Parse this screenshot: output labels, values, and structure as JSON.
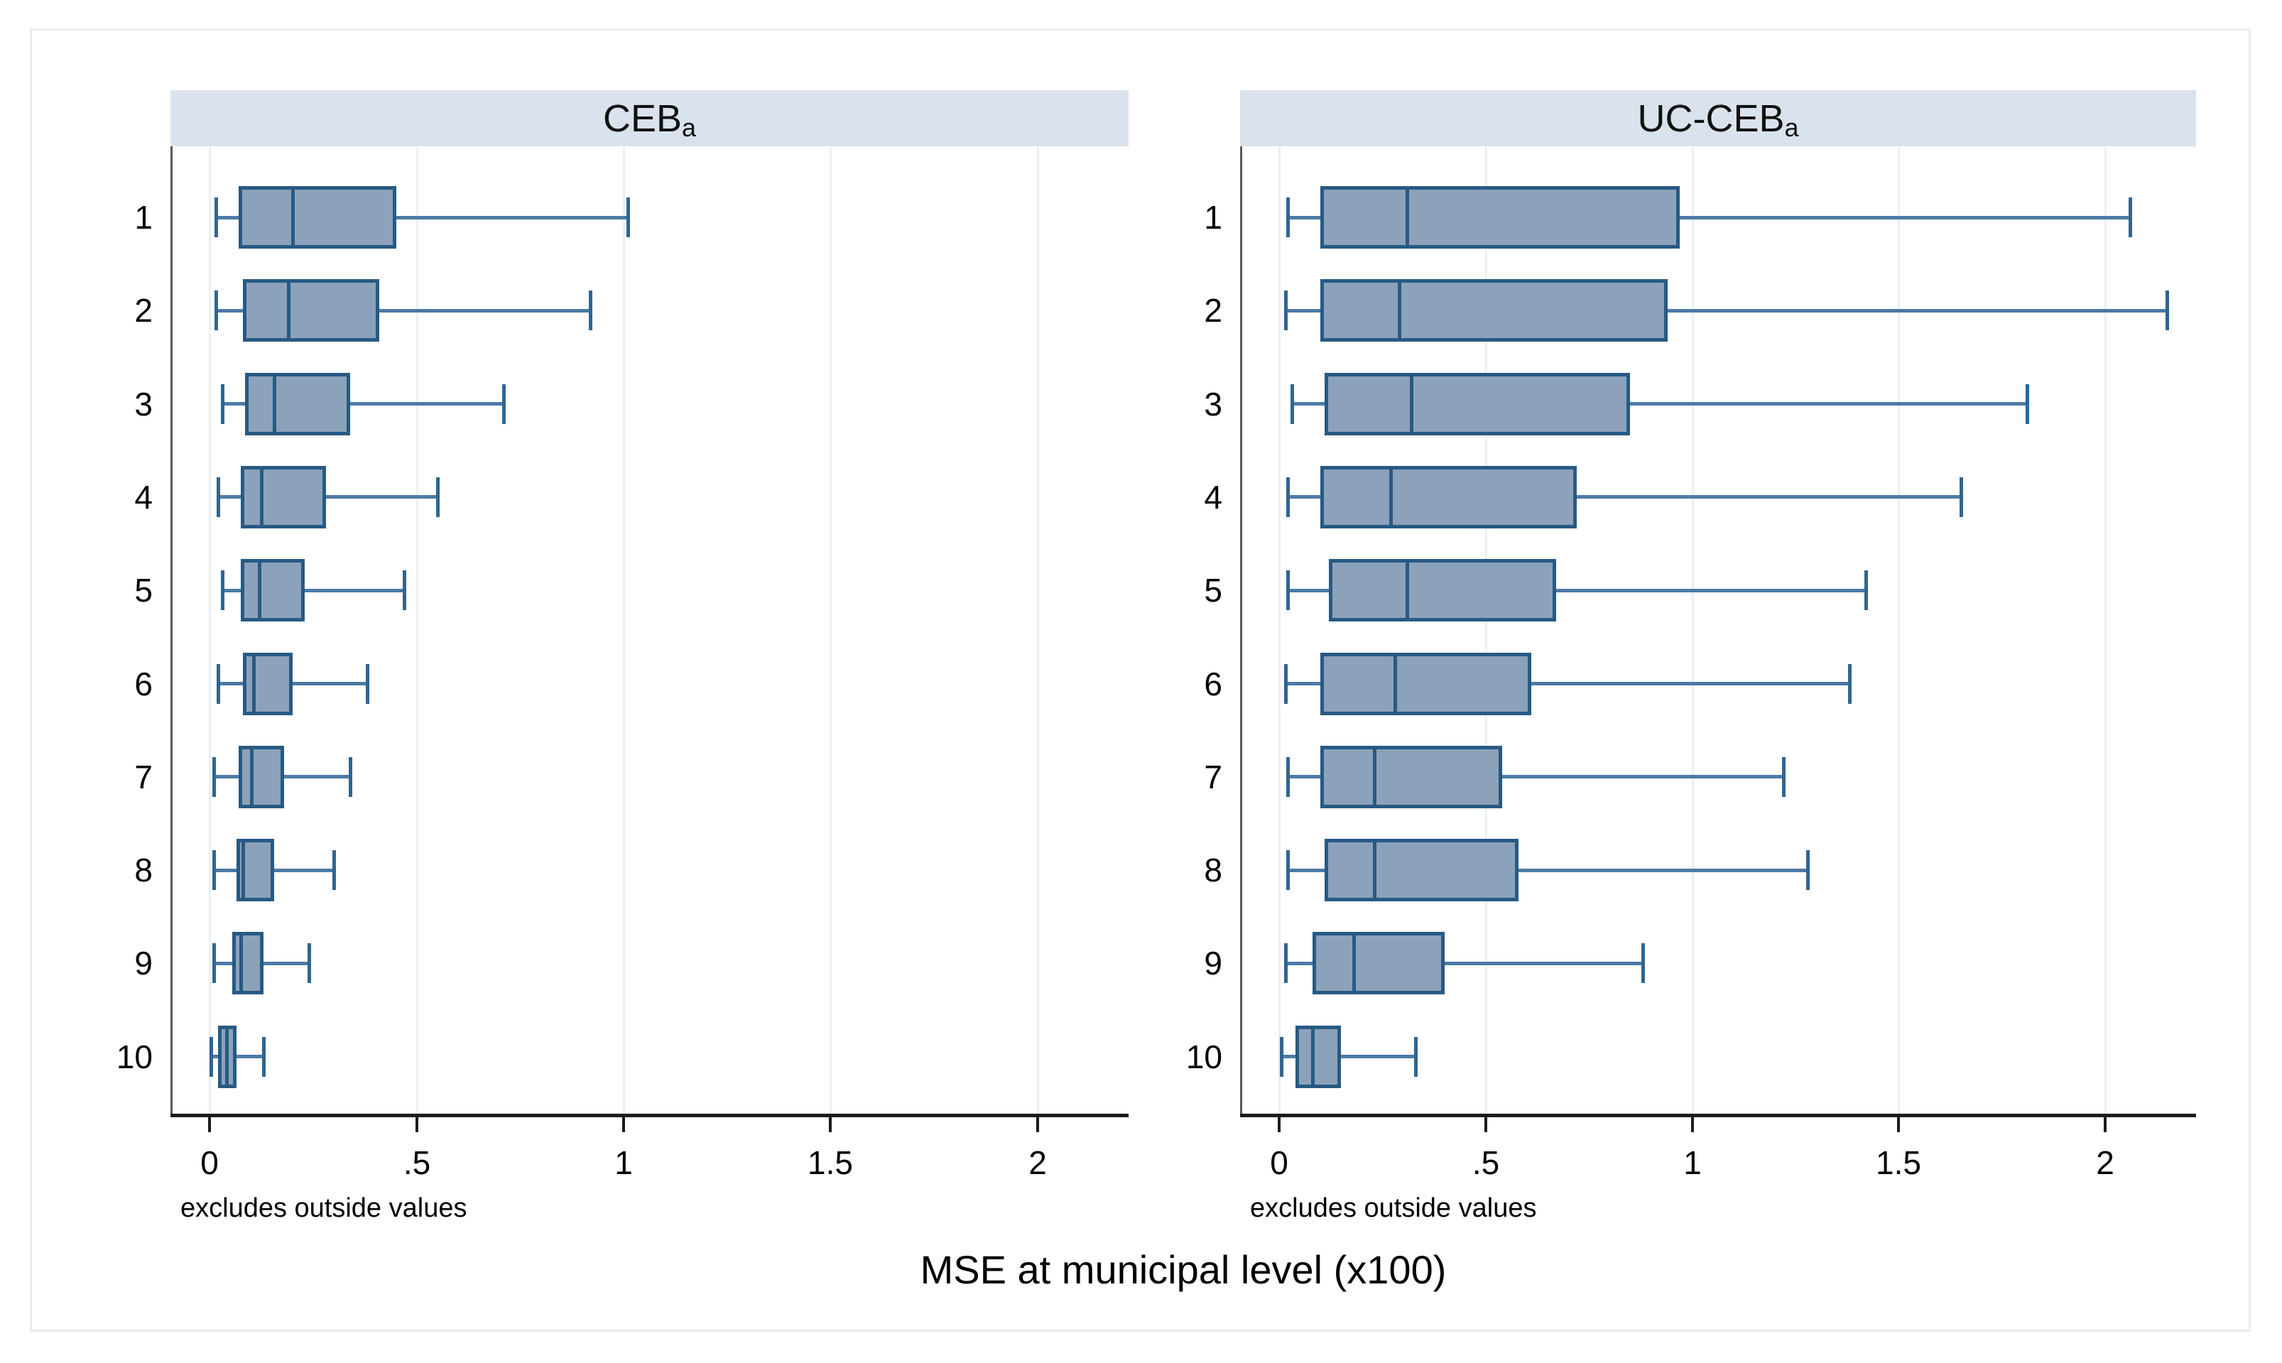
{
  "figure": {
    "xlabel": "MSE at municipal level (x100)",
    "note": "excludes outside values",
    "x_tick_labels": [
      "0",
      ".5",
      "1",
      "1.5",
      "2"
    ],
    "x_tick_values": [
      0,
      0.5,
      1,
      1.5,
      2
    ],
    "colors": {
      "band_background": "#dae3ed",
      "box_fill": "#8ca2ba",
      "box_border": "#275a84",
      "median_line": "#275a84",
      "whisker_line": "#4d7ba6",
      "whisker_cap": "#2f6591",
      "gridline": "#e9f1f6",
      "y_axis": "#5a5a5a",
      "x_axis": "#1c1c1c",
      "figure_border": "#e7edf2"
    }
  },
  "chart_data": [
    {
      "type": "box",
      "orientation": "horizontal",
      "title_main": "CEB",
      "title_sub": "a",
      "note": "excludes outside values",
      "xlim": [
        -0.095,
        2.22
      ],
      "xticks": [
        0,
        0.5,
        1,
        1.5,
        2
      ],
      "grid": true,
      "categories": [
        "1",
        "2",
        "3",
        "4",
        "5",
        "6",
        "7",
        "8",
        "9",
        "10"
      ],
      "rows": [
        {
          "cat": "1",
          "low": 0.015,
          "q1": 0.07,
          "median": 0.2,
          "q3": 0.45,
          "high": 1.01
        },
        {
          "cat": "2",
          "low": 0.015,
          "q1": 0.08,
          "median": 0.19,
          "q3": 0.41,
          "high": 0.92
        },
        {
          "cat": "3",
          "low": 0.03,
          "q1": 0.085,
          "median": 0.155,
          "q3": 0.34,
          "high": 0.71
        },
        {
          "cat": "4",
          "low": 0.02,
          "q1": 0.075,
          "median": 0.125,
          "q3": 0.28,
          "high": 0.55
        },
        {
          "cat": "5",
          "low": 0.03,
          "q1": 0.075,
          "median": 0.12,
          "q3": 0.23,
          "high": 0.47
        },
        {
          "cat": "6",
          "low": 0.02,
          "q1": 0.08,
          "median": 0.105,
          "q3": 0.2,
          "high": 0.38
        },
        {
          "cat": "7",
          "low": 0.01,
          "q1": 0.07,
          "median": 0.1,
          "q3": 0.18,
          "high": 0.34
        },
        {
          "cat": "8",
          "low": 0.01,
          "q1": 0.065,
          "median": 0.08,
          "q3": 0.155,
          "high": 0.3
        },
        {
          "cat": "9",
          "low": 0.01,
          "q1": 0.055,
          "median": 0.075,
          "q3": 0.13,
          "high": 0.24
        },
        {
          "cat": "10",
          "low": 0.003,
          "q1": 0.02,
          "median": 0.04,
          "q3": 0.065,
          "high": 0.13
        }
      ]
    },
    {
      "type": "box",
      "orientation": "horizontal",
      "title_main": "UC-CEB",
      "title_sub": "a",
      "note": "excludes outside values",
      "xlim": [
        -0.095,
        2.22
      ],
      "xticks": [
        0,
        0.5,
        1,
        1.5,
        2
      ],
      "grid": true,
      "categories": [
        "1",
        "2",
        "3",
        "4",
        "5",
        "6",
        "7",
        "8",
        "9",
        "10"
      ],
      "rows": [
        {
          "cat": "1",
          "low": 0.02,
          "q1": 0.1,
          "median": 0.31,
          "q3": 0.97,
          "high": 2.06
        },
        {
          "cat": "2",
          "low": 0.015,
          "q1": 0.1,
          "median": 0.29,
          "q3": 0.94,
          "high": 2.15
        },
        {
          "cat": "3",
          "low": 0.03,
          "q1": 0.11,
          "median": 0.32,
          "q3": 0.85,
          "high": 1.81
        },
        {
          "cat": "4",
          "low": 0.02,
          "q1": 0.1,
          "median": 0.27,
          "q3": 0.72,
          "high": 1.65
        },
        {
          "cat": "5",
          "low": 0.02,
          "q1": 0.12,
          "median": 0.31,
          "q3": 0.67,
          "high": 1.42
        },
        {
          "cat": "6",
          "low": 0.015,
          "q1": 0.1,
          "median": 0.28,
          "q3": 0.61,
          "high": 1.38
        },
        {
          "cat": "7",
          "low": 0.02,
          "q1": 0.1,
          "median": 0.23,
          "q3": 0.54,
          "high": 1.22
        },
        {
          "cat": "8",
          "low": 0.02,
          "q1": 0.11,
          "median": 0.23,
          "q3": 0.58,
          "high": 1.28
        },
        {
          "cat": "9",
          "low": 0.015,
          "q1": 0.08,
          "median": 0.18,
          "q3": 0.4,
          "high": 0.88
        },
        {
          "cat": "10",
          "low": 0.005,
          "q1": 0.04,
          "median": 0.08,
          "q3": 0.15,
          "high": 0.33
        }
      ]
    }
  ]
}
